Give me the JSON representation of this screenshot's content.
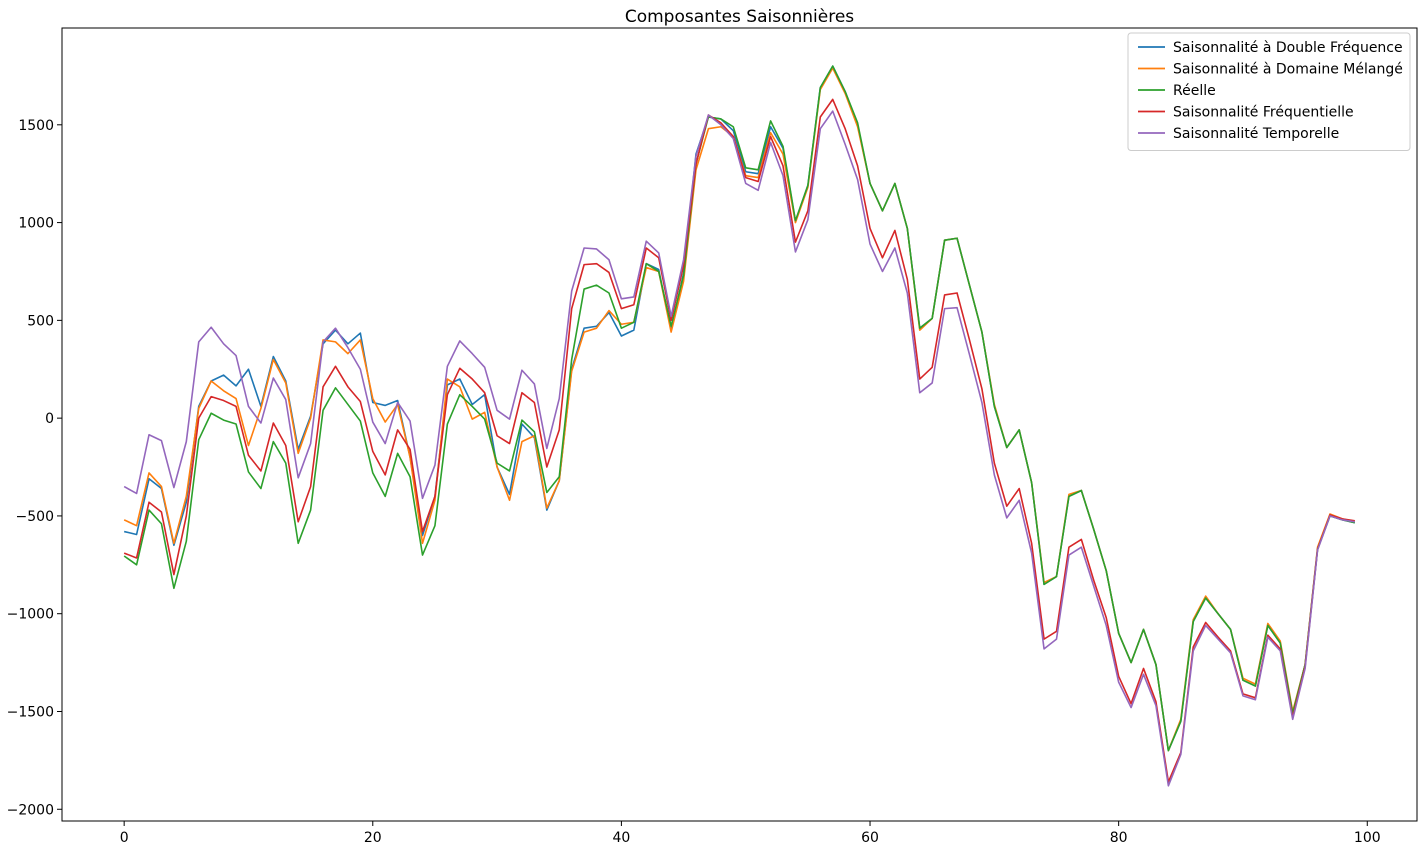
{
  "chart_data": {
    "type": "line",
    "title": "Composantes Saisonnières",
    "xlabel": "",
    "ylabel": "",
    "xlim": [
      -5,
      104
    ],
    "ylim": [
      -2060,
      1995
    ],
    "xticks": [
      0,
      20,
      40,
      60,
      80,
      100
    ],
    "yticks": [
      -2000,
      -1500,
      -1000,
      -500,
      0,
      500,
      1000,
      1500
    ],
    "grid": false,
    "legend_position": "top-right",
    "series": [
      {
        "name": "Saisonnalité à Double Fréquence",
        "color": "#1f77b4",
        "values": [
          -580,
          -595,
          -310,
          -360,
          -650,
          -430,
          60,
          190,
          220,
          165,
          250,
          60,
          315,
          190,
          -160,
          10,
          380,
          450,
          380,
          435,
          80,
          65,
          90,
          -200,
          -600,
          -400,
          170,
          200,
          70,
          120,
          -250,
          -390,
          -30,
          -100,
          -470,
          -320,
          250,
          460,
          470,
          540,
          420,
          450,
          790,
          760,
          450,
          740,
          1350,
          1540,
          1530,
          1470,
          1260,
          1250,
          1490,
          1380,
          1005,
          1190,
          1690,
          1800,
          1670,
          1500,
          1200,
          1060,
          1200,
          970,
          460,
          510,
          910,
          920,
          680,
          440,
          60,
          -150,
          -60,
          -330,
          -850,
          -810,
          -400,
          -370,
          -570,
          -780,
          -1100,
          -1250,
          -1080,
          -1260,
          -1700,
          -1550,
          -1040,
          -920,
          -1000,
          -1080,
          -1340,
          -1370,
          -1060,
          -1150,
          -1510,
          -1260,
          -670,
          -500,
          -520,
          -535
        ]
      },
      {
        "name": "Saisonnalité à Domaine Mélangé",
        "color": "#ff7f0e",
        "values": [
          -520,
          -550,
          -280,
          -350,
          -640,
          -400,
          50,
          190,
          140,
          100,
          -140,
          50,
          300,
          180,
          -180,
          0,
          400,
          390,
          330,
          400,
          100,
          -20,
          70,
          -200,
          -640,
          -420,
          200,
          160,
          -5,
          30,
          -250,
          -420,
          -120,
          -90,
          -460,
          -320,
          240,
          440,
          460,
          550,
          480,
          490,
          770,
          750,
          440,
          700,
          1270,
          1480,
          1490,
          1440,
          1240,
          1230,
          1460,
          1350,
          1000,
          1180,
          1680,
          1790,
          1660,
          1490,
          1200,
          1060,
          1200,
          970,
          450,
          510,
          910,
          920,
          680,
          440,
          70,
          -150,
          -60,
          -330,
          -840,
          -810,
          -390,
          -370,
          -570,
          -780,
          -1100,
          -1250,
          -1080,
          -1260,
          -1700,
          -1540,
          -1030,
          -910,
          -1000,
          -1080,
          -1330,
          -1360,
          -1050,
          -1140,
          -1500,
          -1260,
          -660,
          -490,
          -515,
          -530
        ]
      },
      {
        "name": "Réelle",
        "color": "#2ca02c",
        "values": [
          -705,
          -750,
          -470,
          -540,
          -870,
          -630,
          -110,
          25,
          -10,
          -30,
          -275,
          -360,
          -120,
          -230,
          -640,
          -470,
          40,
          155,
          70,
          -15,
          -280,
          -400,
          -180,
          -300,
          -700,
          -550,
          -30,
          120,
          60,
          -5,
          -230,
          -270,
          -10,
          -70,
          -380,
          -300,
          300,
          660,
          680,
          640,
          460,
          490,
          790,
          750,
          470,
          730,
          1300,
          1540,
          1530,
          1490,
          1280,
          1270,
          1520,
          1390,
          1010,
          1190,
          1690,
          1800,
          1670,
          1510,
          1200,
          1060,
          1200,
          970,
          460,
          510,
          910,
          920,
          680,
          440,
          60,
          -150,
          -60,
          -330,
          -850,
          -810,
          -400,
          -370,
          -570,
          -780,
          -1100,
          -1250,
          -1080,
          -1260,
          -1700,
          -1550,
          -1040,
          -920,
          -1000,
          -1080,
          -1340,
          -1370,
          -1060,
          -1150,
          -1510,
          -1260,
          -670,
          -500,
          -520,
          -535
        ]
      },
      {
        "name": "Saisonnalité Fréquentielle",
        "color": "#d62728",
        "values": [
          -690,
          -715,
          -430,
          -480,
          -800,
          -500,
          0,
          110,
          90,
          60,
          -190,
          -270,
          -25,
          -140,
          -530,
          -350,
          160,
          265,
          160,
          85,
          -170,
          -290,
          -60,
          -160,
          -580,
          -400,
          120,
          255,
          200,
          130,
          -90,
          -130,
          130,
          80,
          -250,
          -60,
          560,
          785,
          790,
          745,
          560,
          580,
          870,
          820,
          500,
          780,
          1300,
          1550,
          1510,
          1440,
          1230,
          1210,
          1440,
          1290,
          900,
          1060,
          1540,
          1630,
          1480,
          1290,
          970,
          820,
          960,
          710,
          200,
          260,
          630,
          640,
          400,
          150,
          -230,
          -450,
          -360,
          -640,
          -1130,
          -1090,
          -660,
          -620,
          -830,
          -1020,
          -1320,
          -1460,
          -1280,
          -1450,
          -1860,
          -1710,
          -1170,
          -1045,
          -1120,
          -1190,
          -1410,
          -1430,
          -1110,
          -1180,
          -1530,
          -1270,
          -670,
          -495,
          -515,
          -525
        ]
      },
      {
        "name": "Saisonnalité Temporelle",
        "color": "#9467bd",
        "values": [
          -350,
          -385,
          -85,
          -115,
          -355,
          -120,
          390,
          465,
          380,
          320,
          60,
          -25,
          205,
          95,
          -305,
          -130,
          390,
          460,
          360,
          250,
          -20,
          -130,
          80,
          -15,
          -410,
          -240,
          265,
          395,
          330,
          260,
          40,
          -5,
          245,
          175,
          -155,
          100,
          650,
          870,
          865,
          810,
          610,
          620,
          905,
          845,
          520,
          810,
          1340,
          1550,
          1500,
          1430,
          1200,
          1165,
          1410,
          1240,
          850,
          1015,
          1480,
          1570,
          1400,
          1220,
          890,
          750,
          870,
          640,
          130,
          180,
          560,
          565,
          325,
          80,
          -290,
          -510,
          -420,
          -690,
          -1180,
          -1130,
          -700,
          -660,
          -860,
          -1060,
          -1350,
          -1480,
          -1310,
          -1470,
          -1880,
          -1720,
          -1190,
          -1060,
          -1130,
          -1200,
          -1420,
          -1440,
          -1120,
          -1190,
          -1540,
          -1280,
          -675,
          -500,
          -520,
          -530
        ]
      }
    ]
  }
}
